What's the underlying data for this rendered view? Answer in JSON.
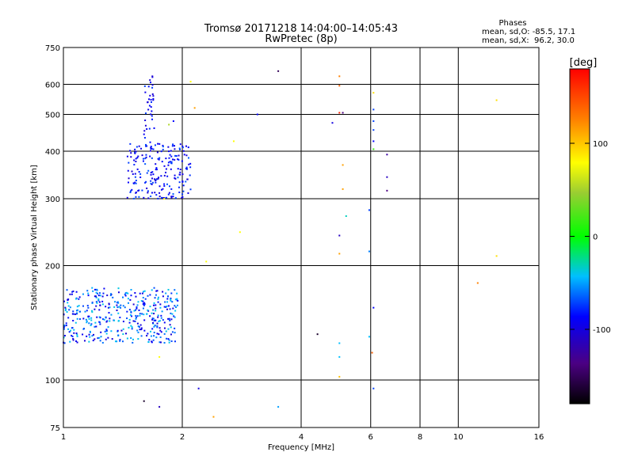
{
  "chart_data": {
    "type": "scatter",
    "title": "Tromsø 20171218 14:04:00–14:05:43",
    "subtitle": "RwPretec (8p)",
    "xlabel": "Frequency [MHz]",
    "ylabel": "Stationary phase Virtual Height [km]",
    "x_scale": "log",
    "y_scale": "log",
    "xlim": [
      1,
      16
    ],
    "ylim": [
      75,
      750
    ],
    "x_ticks": [
      1,
      2,
      4,
      6,
      8,
      10,
      16
    ],
    "y_ticks": [
      75,
      100,
      200,
      300,
      400,
      500,
      600,
      750
    ],
    "grid": true,
    "stats_title": "Phases",
    "stats_line1": "mean, sd,O: -85.5, 17.1",
    "stats_line2": "mean, sd,X:  96.2, 30.0",
    "colorbar": {
      "label": "[deg]",
      "range": [
        -180,
        180
      ],
      "ticks": [
        100,
        0,
        -100
      ]
    },
    "clusters": [
      {
        "xmin": 1.0,
        "xmax": 1.95,
        "ymin": 125,
        "ymax": 175,
        "count": 420,
        "phase_min": -125,
        "phase_max": -70
      },
      {
        "xmin": 1.45,
        "xmax": 2.1,
        "ymin": 300,
        "ymax": 420,
        "count": 210,
        "phase_min": -125,
        "phase_max": -95
      },
      {
        "xmin": 1.6,
        "xmax": 1.7,
        "ymin": 420,
        "ymax": 630,
        "count": 35,
        "phase_min": -125,
        "phase_max": -100
      }
    ],
    "points": [
      {
        "x": 1.68,
        "y": 630,
        "phase": -125
      },
      {
        "x": 2.1,
        "y": 610,
        "phase": 100
      },
      {
        "x": 2.15,
        "y": 520,
        "phase": 130
      },
      {
        "x": 1.9,
        "y": 480,
        "phase": -110
      },
      {
        "x": 1.85,
        "y": 470,
        "phase": 60
      },
      {
        "x": 2.7,
        "y": 425,
        "phase": 100
      },
      {
        "x": 3.1,
        "y": 500,
        "phase": -110
      },
      {
        "x": 3.5,
        "y": 650,
        "phase": -160
      },
      {
        "x": 2.8,
        "y": 245,
        "phase": 100
      },
      {
        "x": 2.3,
        "y": 205,
        "phase": 100
      },
      {
        "x": 1.8,
        "y": 300,
        "phase": 100
      },
      {
        "x": 1.75,
        "y": 115,
        "phase": 100
      },
      {
        "x": 1.6,
        "y": 88,
        "phase": -170
      },
      {
        "x": 1.75,
        "y": 85,
        "phase": -130
      },
      {
        "x": 2.2,
        "y": 95,
        "phase": -120
      },
      {
        "x": 2.4,
        "y": 80,
        "phase": 130
      },
      {
        "x": 3.5,
        "y": 85,
        "phase": -85
      },
      {
        "x": 5.0,
        "y": 630,
        "phase": 140
      },
      {
        "x": 5.0,
        "y": 595,
        "phase": 150
      },
      {
        "x": 5.0,
        "y": 505,
        "phase": 170
      },
      {
        "x": 4.8,
        "y": 475,
        "phase": -120
      },
      {
        "x": 5.1,
        "y": 505,
        "phase": -150
      },
      {
        "x": 5.1,
        "y": 368,
        "phase": 130
      },
      {
        "x": 5.1,
        "y": 318,
        "phase": 130
      },
      {
        "x": 5.2,
        "y": 270,
        "phase": -60
      },
      {
        "x": 5.0,
        "y": 240,
        "phase": -130
      },
      {
        "x": 5.0,
        "y": 215,
        "phase": 130
      },
      {
        "x": 5.0,
        "y": 125,
        "phase": -80
      },
      {
        "x": 5.0,
        "y": 115,
        "phase": -80
      },
      {
        "x": 5.0,
        "y": 102,
        "phase": 120
      },
      {
        "x": 4.4,
        "y": 132,
        "phase": -170
      },
      {
        "x": 6.1,
        "y": 570,
        "phase": 110
      },
      {
        "x": 6.1,
        "y": 515,
        "phase": -100
      },
      {
        "x": 6.1,
        "y": 480,
        "phase": -100
      },
      {
        "x": 6.1,
        "y": 455,
        "phase": -100
      },
      {
        "x": 6.1,
        "y": 425,
        "phase": -110
      },
      {
        "x": 6.1,
        "y": 405,
        "phase": 20
      },
      {
        "x": 5.95,
        "y": 280,
        "phase": -100
      },
      {
        "x": 5.95,
        "y": 218,
        "phase": -90
      },
      {
        "x": 6.1,
        "y": 155,
        "phase": -110
      },
      {
        "x": 5.95,
        "y": 130,
        "phase": -80
      },
      {
        "x": 6.05,
        "y": 118,
        "phase": 150
      },
      {
        "x": 6.1,
        "y": 95,
        "phase": -100
      },
      {
        "x": 6.6,
        "y": 392,
        "phase": -140
      },
      {
        "x": 6.6,
        "y": 342,
        "phase": -130
      },
      {
        "x": 6.6,
        "y": 315,
        "phase": -150
      },
      {
        "x": 11.2,
        "y": 180,
        "phase": 140
      },
      {
        "x": 12.5,
        "y": 545,
        "phase": 110
      },
      {
        "x": 12.5,
        "y": 212,
        "phase": 110
      }
    ]
  }
}
